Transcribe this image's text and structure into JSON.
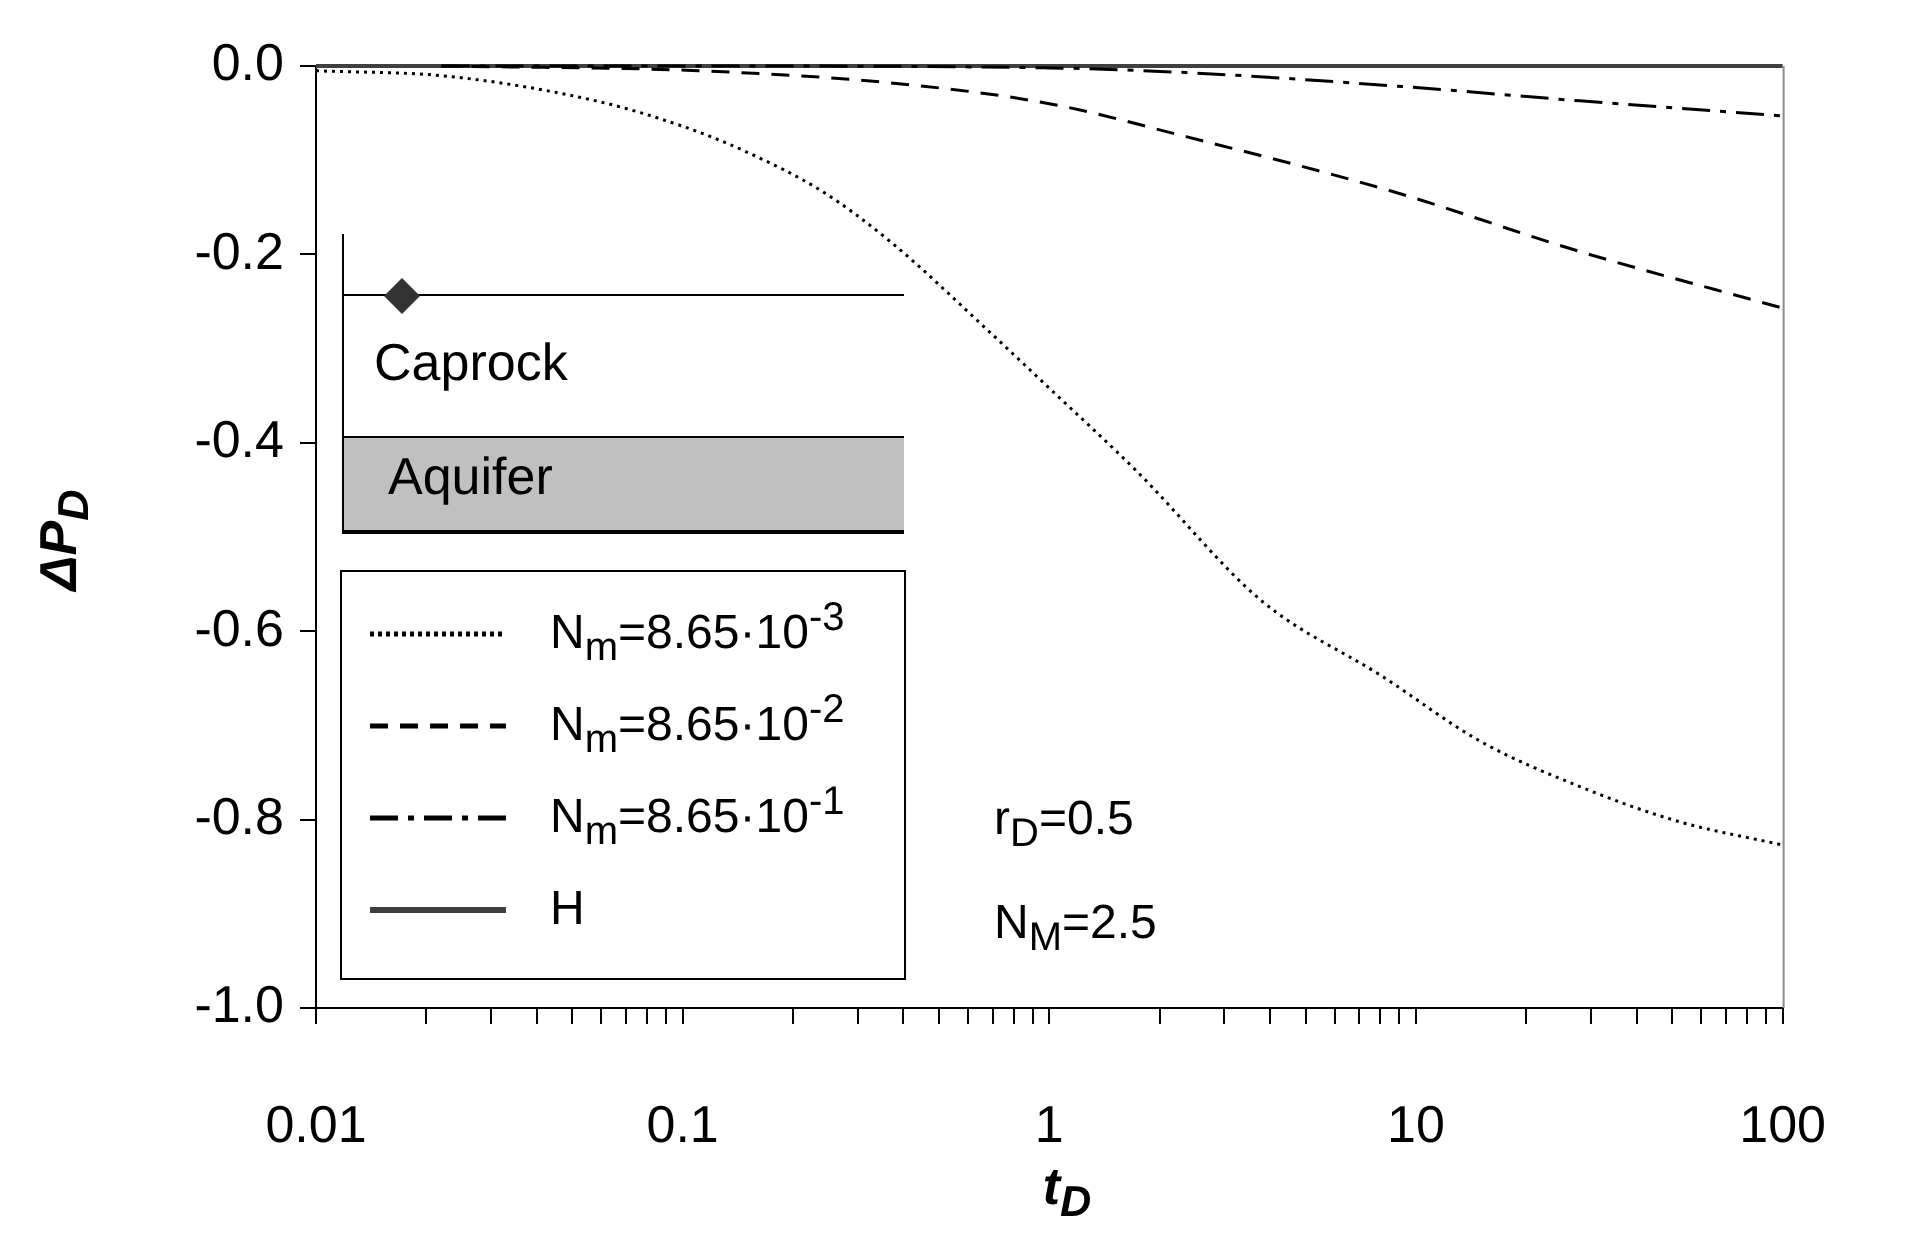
{
  "chart_data": {
    "type": "line",
    "xlabel": "t$_{D}$",
    "ylabel": "ΔP$_{D}$",
    "log": "x",
    "xlim": [
      0.01,
      100
    ],
    "ylim": [
      -1,
      0
    ],
    "xticks": [
      0.01,
      {
        "value": 0.02,
        "label": null
      },
      {
        "value": 0.03,
        "label": null
      },
      {
        "value": 0.04,
        "label": null
      },
      {
        "value": 0.05,
        "label": null
      },
      {
        "value": 0.06,
        "label": null
      },
      {
        "value": 0.07,
        "label": null
      },
      {
        "value": 0.08,
        "label": null
      },
      {
        "value": 0.09,
        "label": null
      },
      0.1,
      {
        "value": 0.2,
        "label": null
      },
      {
        "value": 0.3,
        "label": null
      },
      {
        "value": 0.4,
        "label": null
      },
      {
        "value": 0.5,
        "label": null
      },
      {
        "value": 0.6,
        "label": null
      },
      {
        "value": 0.7,
        "label": null
      },
      {
        "value": 0.8,
        "label": null
      },
      {
        "value": 0.9,
        "label": null
      },
      1,
      {
        "value": 2,
        "label": null
      },
      {
        "value": 3,
        "label": null
      },
      {
        "value": 4,
        "label": null
      },
      {
        "value": 5,
        "label": null
      },
      {
        "value": 6,
        "label": null
      },
      {
        "value": 7,
        "label": null
      },
      {
        "value": 8,
        "label": null
      },
      {
        "value": 9,
        "label": null
      },
      10,
      {
        "value": 20,
        "label": null
      },
      {
        "value": 30,
        "label": null
      },
      {
        "value": 40,
        "label": null
      },
      {
        "value": 50,
        "label": null
      },
      {
        "value": 60,
        "label": null
      },
      {
        "value": 70,
        "label": null
      },
      {
        "value": 80,
        "label": null
      },
      {
        "value": 90,
        "label": null
      },
      100
    ],
    "yticks": [
      {
        "value": 0,
        "label": "0.0"
      },
      {
        "value": -0.2,
        "label": "-0.2"
      },
      {
        "value": -0.4,
        "label": "-0.4"
      },
      {
        "value": -0.6,
        "label": "-0.6"
      },
      {
        "value": -0.8,
        "label": "-0.8"
      },
      {
        "value": -1,
        "label": "-1.0"
      }
    ],
    "legend": "bottom left",
    "series": [
      {
        "name": "N$_{m}$=8.65·10$^{-3}$",
        "color": "#000000",
        "line_style": "dotted",
        "x": [
          0.01,
          0.023,
          0.058,
          0.1,
          0.147,
          0.24,
          0.37,
          0.69,
          1,
          1.73,
          3.8,
          8.1,
          15,
          28,
          52,
          100
        ],
        "values": [
          -0.005,
          -0.011,
          -0.037,
          -0.064,
          -0.09,
          -0.133,
          -0.187,
          -0.283,
          -0.342,
          -0.43,
          -0.568,
          -0.648,
          -0.717,
          -0.765,
          -0.802,
          -0.827
        ]
      },
      {
        "name": "N$_{m}$=8.65·10$^{-2}$",
        "color": "#000000",
        "line_style": "dashed",
        "x": [
          0.022,
          0.11,
          0.37,
          1,
          2.36,
          8.6,
          28,
          100
        ],
        "values": [
          0,
          -0.005,
          -0.018,
          -0.04,
          -0.075,
          -0.133,
          -0.197,
          -0.257
        ]
      },
      {
        "name": "N$_{m}$=8.65·10$^{-1}$",
        "color": "#000000",
        "line_style": "dashdot",
        "x": [
          0.022,
          0.11,
          1,
          2.36,
          8.6,
          28,
          100
        ],
        "values": [
          0,
          0,
          -0.002,
          -0.007,
          -0.021,
          -0.037,
          -0.053
        ]
      },
      {
        "name": "H",
        "color": "#404040",
        "line_style": "solid",
        "x": [
          0.01,
          100
        ],
        "values": [
          0,
          0
        ]
      }
    ],
    "annotations": [
      "Caprock",
      "Aquifer",
      "r$_{D}$=0.5",
      "N$_{M}$=2.5"
    ]
  }
}
